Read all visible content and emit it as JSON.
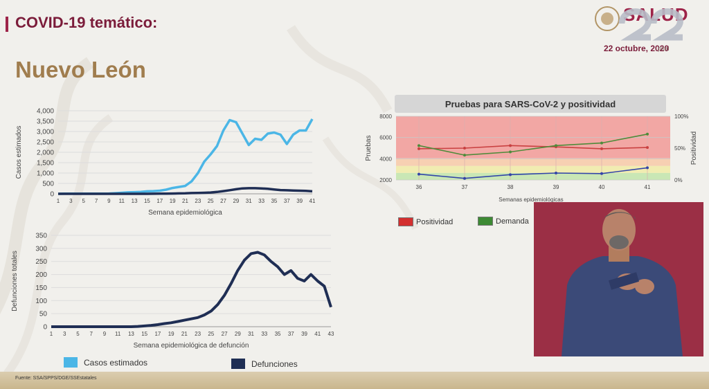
{
  "header": {
    "title": "COVID-19 temático:",
    "state": "Nuevo León",
    "date": "22 octubre, 2020",
    "hosp_label": "pital",
    "logo_text": "SALUD"
  },
  "footer": {
    "source": "Fuente: SSA/SPPS/DGE/SSEstatales"
  },
  "colors": {
    "casos": "#4bb6e6",
    "defunciones": "#1f2e54",
    "positividad": "#c94040",
    "demanda": "#4e8b3a",
    "pruebas": "#3244a8",
    "brand": "#9d2449",
    "gold": "#a07d4e"
  },
  "legend": {
    "casos": "Casos estimados",
    "defunciones": "Defunciones",
    "positividad": "Positividad",
    "demanda": "Demanda"
  },
  "chart_data": [
    {
      "type": "line",
      "ylabel": "Casos estimados",
      "xlabel": "Semana epidemiológica",
      "ylim": [
        0,
        4000
      ],
      "yticks": [
        "0",
        "500",
        "1,000",
        "1,500",
        "2,000",
        "2,500",
        "3,000",
        "3,500",
        "4,000"
      ],
      "x": [
        1,
        2,
        3,
        4,
        5,
        6,
        7,
        8,
        9,
        10,
        11,
        12,
        13,
        14,
        15,
        16,
        17,
        18,
        19,
        20,
        21,
        22,
        23,
        24,
        25,
        26,
        27,
        28,
        29,
        30,
        31,
        32,
        33,
        34,
        35,
        36,
        37,
        38,
        39,
        40,
        41
      ],
      "xticks": [
        1,
        3,
        5,
        7,
        9,
        11,
        13,
        15,
        17,
        19,
        21,
        23,
        25,
        27,
        29,
        31,
        33,
        35,
        37,
        39,
        41
      ],
      "series": [
        {
          "name": "Casos estimados",
          "values": [
            0,
            5,
            5,
            5,
            5,
            5,
            5,
            10,
            15,
            30,
            50,
            70,
            80,
            90,
            120,
            130,
            150,
            200,
            280,
            330,
            380,
            600,
            1000,
            1550,
            1900,
            2300,
            3050,
            3550,
            3450,
            2900,
            2350,
            2650,
            2600,
            2900,
            2950,
            2850,
            2400,
            2850,
            3050,
            3050,
            3600
          ]
        },
        {
          "name": "Defunciones",
          "values": [
            0,
            0,
            0,
            0,
            0,
            0,
            0,
            0,
            0,
            0,
            0,
            0,
            0,
            0,
            0,
            2,
            5,
            10,
            15,
            20,
            25,
            35,
            40,
            50,
            65,
            90,
            130,
            175,
            220,
            260,
            270,
            270,
            260,
            240,
            210,
            180,
            170,
            160,
            150,
            140,
            120
          ]
        }
      ],
      "grid": true
    },
    {
      "type": "line",
      "ylabel": "Defunciones totales",
      "xlabel": "Semana epidemiológica de defunción",
      "ylim": [
        0,
        350
      ],
      "yticks": [
        "0",
        "50",
        "100",
        "150",
        "200",
        "250",
        "300",
        "350"
      ],
      "x": [
        1,
        2,
        3,
        4,
        5,
        6,
        7,
        8,
        9,
        10,
        11,
        12,
        13,
        14,
        15,
        16,
        17,
        18,
        19,
        20,
        21,
        22,
        23,
        24,
        25,
        26,
        27,
        28,
        29,
        30,
        31,
        32,
        33,
        34,
        35,
        36,
        37,
        38,
        39,
        40,
        41,
        42,
        43
      ],
      "xticks": [
        1,
        3,
        5,
        7,
        9,
        11,
        13,
        15,
        17,
        19,
        21,
        23,
        25,
        27,
        29,
        31,
        33,
        35,
        37,
        39,
        41,
        43
      ],
      "series": [
        {
          "name": "Defunciones",
          "values": [
            0,
            0,
            0,
            0,
            0,
            0,
            0,
            0,
            0,
            0,
            0,
            0,
            0,
            1,
            3,
            5,
            8,
            12,
            15,
            20,
            25,
            30,
            35,
            45,
            60,
            85,
            120,
            165,
            215,
            255,
            280,
            285,
            275,
            250,
            230,
            200,
            215,
            185,
            175,
            200,
            175,
            155,
            75
          ]
        }
      ],
      "grid": true
    },
    {
      "type": "line",
      "title": "Pruebas para SARS-CoV-2 y positividad",
      "ylabel": "Pruebas",
      "ylabel2": "Positividad",
      "xlabel": "Semanas epidemiológicas",
      "categories": [
        "36",
        "37",
        "38",
        "39",
        "40",
        "41"
      ],
      "ylim": [
        2000,
        8000
      ],
      "yticks": [
        "2000",
        "4000",
        "6000",
        "8000"
      ],
      "y2ticks": [
        "0%",
        "50%",
        "100%"
      ],
      "series": [
        {
          "name": "Positividad",
          "axis": "y2",
          "values": [
            49,
            50,
            54,
            52,
            49,
            51
          ]
        },
        {
          "name": "Demanda",
          "axis": "y2",
          "values": [
            54,
            39,
            44,
            54,
            58,
            72
          ]
        },
        {
          "name": "Pruebas",
          "axis": "y",
          "values": [
            2550,
            2150,
            2500,
            2650,
            2600,
            3150
          ]
        }
      ],
      "grid": true
    }
  ]
}
